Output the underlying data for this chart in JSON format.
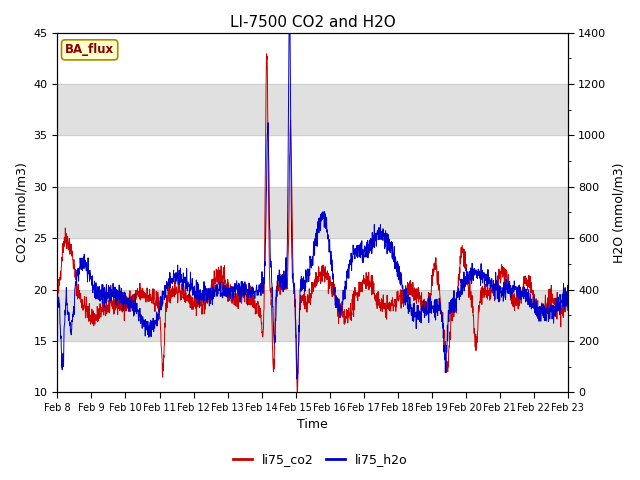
{
  "title": "LI-7500 CO2 and H2O",
  "xlabel": "Time",
  "ylabel_left": "CO2 (mmol/m3)",
  "ylabel_right": "H2O (mmol/m3)",
  "ylim_left": [
    10,
    45
  ],
  "ylim_right": [
    0,
    1400
  ],
  "yticks_left": [
    10,
    15,
    20,
    25,
    30,
    35,
    40,
    45
  ],
  "yticks_right": [
    0,
    200,
    400,
    600,
    800,
    1000,
    1200,
    1400
  ],
  "color_co2": "#cc0000",
  "color_h2o": "#0000cc",
  "legend_label_co2": "li75_co2",
  "legend_label_h2o": "li75_h2o",
  "badge_text": "BA_flux",
  "badge_bg": "#ffffcc",
  "badge_border": "#aa8800",
  "n_points": 2000,
  "background_color": "#ffffff",
  "grid_band_color": "#e0e0e0",
  "title_fontsize": 11,
  "axis_fontsize": 9,
  "tick_fontsize": 8,
  "band_ranges": [
    [
      15,
      20
    ],
    [
      25,
      30
    ],
    [
      35,
      40
    ]
  ],
  "linewidth": 0.7
}
